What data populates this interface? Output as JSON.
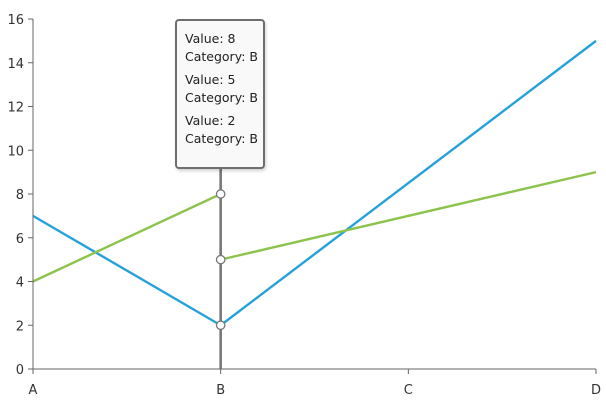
{
  "chart_data": {
    "type": "line",
    "categories": [
      "A",
      "B",
      "C",
      "D"
    ],
    "ylim": [
      0,
      16
    ],
    "yticks": [
      0,
      2,
      4,
      6,
      8,
      10,
      12,
      14,
      16
    ],
    "series": [
      {
        "color": "#27a1db",
        "values": [
          7,
          2,
          null,
          15
        ]
      },
      {
        "color": "#8cc34b",
        "segments": [
          {
            "x": [
              "A",
              "B"
            ],
            "y": [
              4,
              8
            ]
          },
          {
            "x": [
              "B",
              "D"
            ],
            "y": [
              5,
              9
            ]
          }
        ]
      }
    ],
    "crosshair": {
      "category": "B",
      "points": [
        8,
        5,
        2
      ]
    }
  },
  "tooltip": {
    "entries": [
      {
        "value": "Value: 8",
        "category": "Category: B"
      },
      {
        "value": "Value: 5",
        "category": "Category: B"
      },
      {
        "value": "Value: 2",
        "category": "Category: B"
      }
    ]
  },
  "colors": {
    "axis": "#666666",
    "crosshair": "#777777",
    "text": "#333333"
  }
}
